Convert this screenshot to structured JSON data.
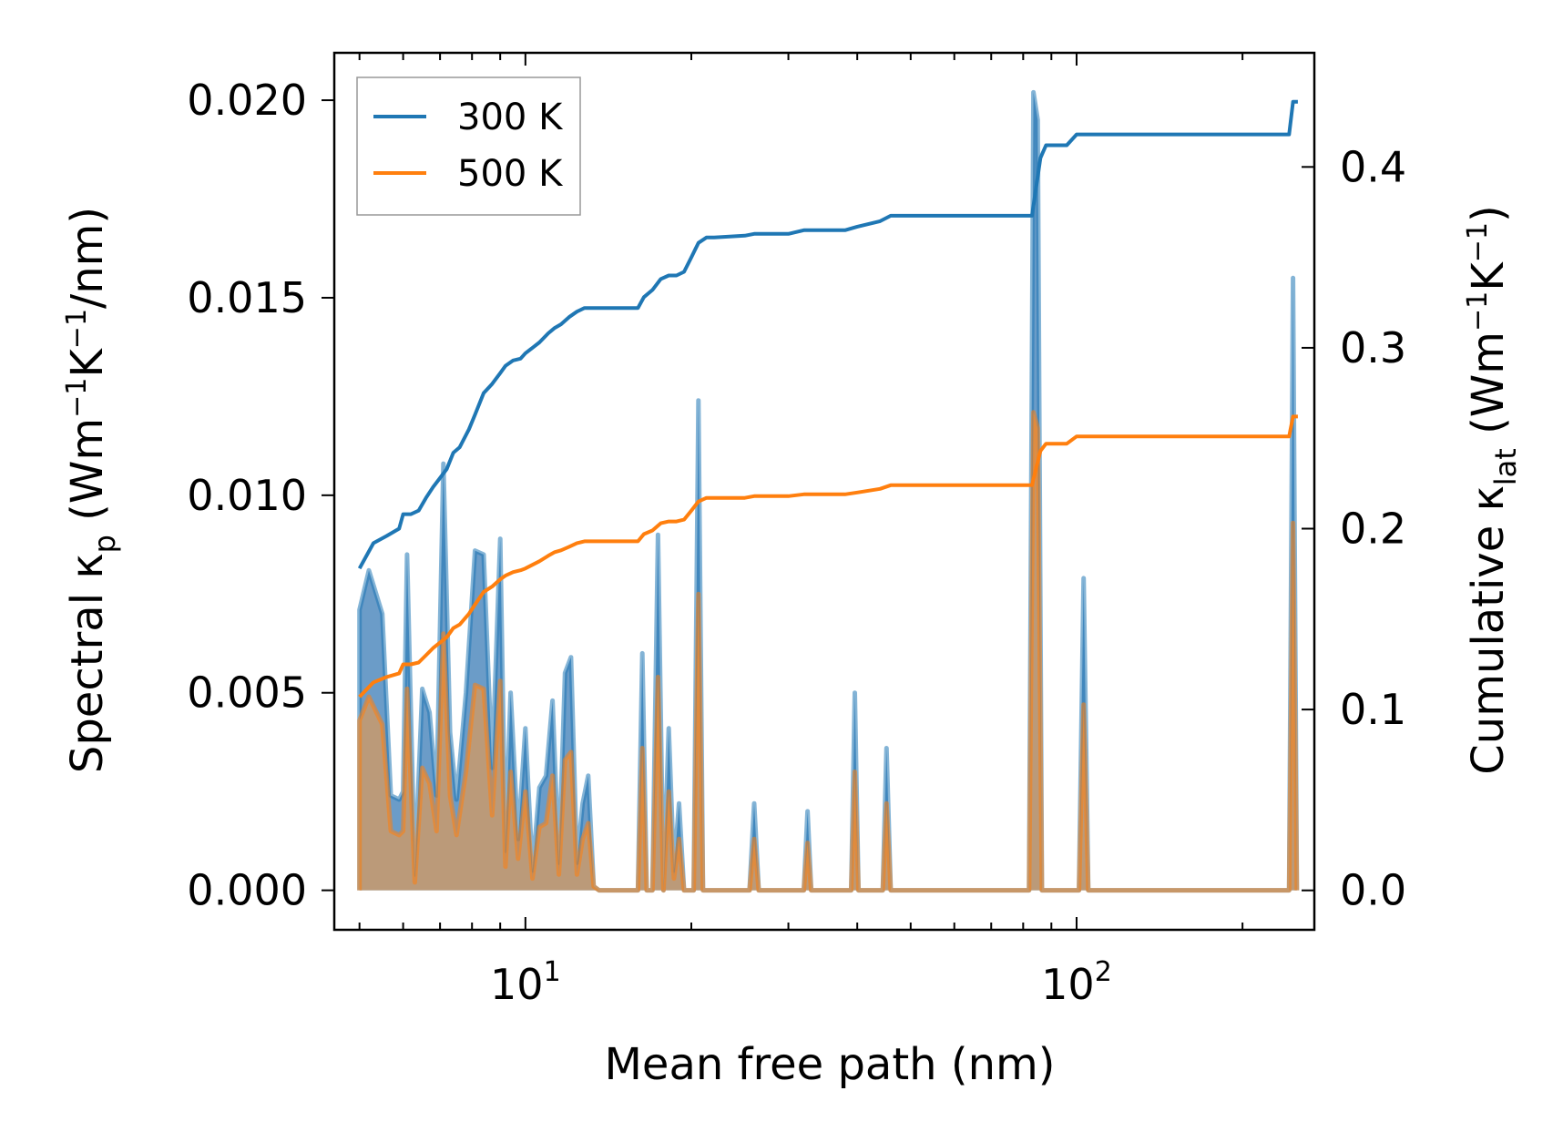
{
  "chart_data": {
    "type": "line",
    "x_scale": "log",
    "xlabel": "Mean free path (nm)",
    "ylabel_left": {
      "prefix": "Spectral κ",
      "sub": "p",
      "unit_open": " (Wm",
      "sup1": "−1",
      "k": "K",
      "sup2": "−1",
      "unit_close": "/nm)"
    },
    "ylabel_right": {
      "prefix": "Cumulative κ",
      "sub": "lat",
      "unit_open": " (Wm",
      "sup1": "−1",
      "k": "K",
      "sup2": "−1",
      "unit_close": ")"
    },
    "xlim": [
      4.5,
      270
    ],
    "ylim_left": [
      -0.001,
      0.0212
    ],
    "ylim_right": [
      -0.0218,
      0.4631
    ],
    "x_ticks": [
      {
        "value": 10,
        "base": "10",
        "exp": "1"
      },
      {
        "value": 100,
        "base": "10",
        "exp": "2"
      }
    ],
    "y_left_ticks": [
      {
        "value": 0.0,
        "label": "0.000"
      },
      {
        "value": 0.005,
        "label": "0.005"
      },
      {
        "value": 0.01,
        "label": "0.010"
      },
      {
        "value": 0.015,
        "label": "0.015"
      },
      {
        "value": 0.02,
        "label": "0.020"
      }
    ],
    "y_right_ticks": [
      {
        "value": 0.0,
        "label": "0.0"
      },
      {
        "value": 0.1,
        "label": "0.1"
      },
      {
        "value": 0.2,
        "label": "0.2"
      },
      {
        "value": 0.3,
        "label": "0.3"
      },
      {
        "value": 0.4,
        "label": "0.4"
      }
    ],
    "legend": {
      "position": "upper-left",
      "entries": [
        "300 K",
        "500 K"
      ]
    },
    "colors": {
      "300 K": "#1f77b4",
      "500 K": "#ff7f0e",
      "fill_300": "#5b91c2",
      "fill_500": "#c99a6b"
    },
    "series": [
      {
        "name": "300 K",
        "spectral": {
          "x": [
            5.0,
            5.0,
            5.2,
            5.5,
            5.7,
            5.9,
            6.0,
            6.1,
            6.3,
            6.5,
            6.7,
            6.9,
            7.1,
            7.3,
            7.5,
            7.8,
            8.1,
            8.4,
            8.7,
            9.0,
            9.2,
            9.4,
            9.7,
            10.0,
            10.3,
            10.6,
            10.9,
            11.2,
            11.5,
            11.8,
            12.1,
            12.4,
            12.7,
            13.0,
            13.3,
            13.6,
            13.9,
            14.2,
            16.0,
            16.3,
            16.6,
            17.0,
            17.4,
            17.8,
            18.2,
            18.6,
            19.0,
            19.4,
            19.8,
            20.2,
            20.6,
            21.0,
            21.4,
            21.8,
            25.5,
            26.0,
            26.5,
            32.0,
            32.5,
            33.0,
            39.0,
            39.6,
            40.2,
            44.5,
            45.2,
            46.0,
            82.0,
            83.5,
            85.0,
            86.5,
            88.0,
            89.5,
            101.0,
            103.0,
            105.0,
            243.0,
            247.0,
            251.0
          ],
          "y": [
            0.0,
            0.0071,
            0.0081,
            0.007,
            0.0024,
            0.0023,
            0.0025,
            0.0085,
            0.0004,
            0.0051,
            0.0045,
            0.0024,
            0.0108,
            0.004,
            0.0023,
            0.005,
            0.0086,
            0.0085,
            0.0031,
            0.0089,
            0.001,
            0.005,
            0.0013,
            0.0041,
            0.0005,
            0.0026,
            0.0029,
            0.0048,
            0.0007,
            0.0055,
            0.0059,
            0.0007,
            0.0022,
            0.0029,
            0.0001,
            0.0,
            0.0,
            0.0,
            0.0,
            0.006,
            0.0,
            0.0,
            0.009,
            0.0,
            0.0041,
            0.0005,
            0.0022,
            0.0,
            0.0,
            0.0,
            0.0124,
            0.0,
            0.0,
            0.0,
            0.0,
            0.0022,
            0.0,
            0.0,
            0.002,
            0.0,
            0.0,
            0.005,
            0.0,
            0.0,
            0.0036,
            0.0,
            0.0,
            0.0202,
            0.0195,
            0.0,
            0.0,
            0.0,
            0.0,
            0.0079,
            0.0,
            0.0,
            0.0155,
            0.0
          ]
        },
        "cumulative": {
          "x": [
            5.0,
            5.3,
            5.6,
            5.9,
            6.0,
            6.2,
            6.4,
            6.6,
            6.8,
            7.0,
            7.2,
            7.4,
            7.6,
            7.9,
            8.1,
            8.4,
            8.7,
            9.0,
            9.2,
            9.5,
            9.8,
            10.0,
            10.3,
            10.6,
            11.0,
            11.3,
            11.6,
            12.0,
            12.4,
            12.8,
            13.2,
            13.6,
            16.0,
            16.4,
            17.0,
            17.6,
            18.2,
            18.8,
            19.4,
            20.0,
            20.6,
            21.3,
            22.0,
            25.0,
            26.0,
            30.0,
            32.0,
            38.0,
            40.0,
            44.0,
            46.0,
            80.0,
            83.0,
            86.0,
            88.0,
            96.0,
            100.0,
            243.0,
            247.0,
            252.0
          ],
          "y": [
            0.178,
            0.192,
            0.196,
            0.2,
            0.208,
            0.208,
            0.21,
            0.217,
            0.223,
            0.228,
            0.233,
            0.242,
            0.245,
            0.255,
            0.263,
            0.275,
            0.28,
            0.286,
            0.29,
            0.293,
            0.294,
            0.297,
            0.3,
            0.303,
            0.308,
            0.311,
            0.313,
            0.317,
            0.32,
            0.322,
            0.322,
            0.322,
            0.322,
            0.328,
            0.332,
            0.338,
            0.34,
            0.34,
            0.342,
            0.35,
            0.358,
            0.361,
            0.361,
            0.362,
            0.363,
            0.363,
            0.365,
            0.365,
            0.367,
            0.37,
            0.373,
            0.373,
            0.373,
            0.405,
            0.412,
            0.412,
            0.418,
            0.418,
            0.436,
            0.436
          ]
        }
      },
      {
        "name": "500 K",
        "spectral": {
          "x": [
            5.0,
            5.0,
            5.2,
            5.5,
            5.7,
            5.9,
            6.0,
            6.1,
            6.3,
            6.5,
            6.7,
            6.9,
            7.1,
            7.3,
            7.5,
            7.8,
            8.1,
            8.4,
            8.7,
            9.0,
            9.2,
            9.4,
            9.7,
            10.0,
            10.3,
            10.6,
            10.9,
            11.2,
            11.5,
            11.8,
            12.1,
            12.4,
            12.7,
            13.0,
            13.3,
            13.6,
            13.9,
            14.2,
            16.0,
            16.3,
            16.6,
            17.0,
            17.4,
            17.8,
            18.2,
            18.6,
            19.0,
            19.4,
            19.8,
            20.2,
            20.6,
            21.0,
            21.4,
            21.8,
            25.5,
            26.0,
            26.5,
            32.0,
            32.5,
            33.0,
            39.0,
            39.6,
            40.2,
            44.5,
            45.2,
            46.0,
            82.0,
            83.5,
            85.0,
            86.5,
            88.0,
            89.5,
            101.0,
            103.0,
            105.0,
            243.0,
            247.0,
            251.0
          ],
          "y": [
            0.0,
            0.0043,
            0.0049,
            0.0042,
            0.0015,
            0.0014,
            0.0015,
            0.0051,
            0.0002,
            0.0031,
            0.0027,
            0.0015,
            0.0065,
            0.0024,
            0.0014,
            0.003,
            0.0052,
            0.0051,
            0.0019,
            0.0053,
            0.0006,
            0.003,
            0.0008,
            0.0025,
            0.0003,
            0.0016,
            0.0017,
            0.0029,
            0.0004,
            0.0033,
            0.0035,
            0.0004,
            0.0013,
            0.0017,
            0.0001,
            0.0,
            0.0,
            0.0,
            0.0,
            0.0036,
            0.0,
            0.0,
            0.0054,
            0.0,
            0.0025,
            0.0003,
            0.0013,
            0.0,
            0.0,
            0.0,
            0.0075,
            0.0,
            0.0,
            0.0,
            0.0,
            0.0013,
            0.0,
            0.0,
            0.0012,
            0.0,
            0.0,
            0.003,
            0.0,
            0.0,
            0.0022,
            0.0,
            0.0,
            0.0121,
            0.0117,
            0.0,
            0.0,
            0.0,
            0.0,
            0.0047,
            0.0,
            0.0,
            0.0093,
            0.0
          ]
        },
        "cumulative": {
          "x": [
            5.0,
            5.3,
            5.6,
            5.9,
            6.0,
            6.2,
            6.4,
            6.6,
            6.8,
            7.0,
            7.2,
            7.4,
            7.6,
            7.9,
            8.1,
            8.4,
            8.7,
            9.0,
            9.2,
            9.5,
            9.8,
            10.0,
            10.3,
            10.6,
            11.0,
            11.3,
            11.6,
            12.0,
            12.4,
            12.8,
            13.2,
            13.6,
            16.0,
            16.4,
            17.0,
            17.6,
            18.2,
            18.8,
            19.4,
            20.0,
            20.6,
            21.3,
            22.0,
            25.0,
            26.0,
            30.0,
            32.0,
            38.0,
            40.0,
            44.0,
            46.0,
            80.0,
            83.0,
            86.0,
            88.0,
            96.0,
            100.0,
            243.0,
            247.0,
            252.0
          ],
          "y": [
            0.107,
            0.115,
            0.118,
            0.12,
            0.125,
            0.125,
            0.126,
            0.13,
            0.134,
            0.137,
            0.14,
            0.145,
            0.147,
            0.153,
            0.158,
            0.165,
            0.168,
            0.172,
            0.174,
            0.176,
            0.177,
            0.178,
            0.18,
            0.182,
            0.185,
            0.187,
            0.188,
            0.19,
            0.192,
            0.193,
            0.193,
            0.193,
            0.193,
            0.197,
            0.199,
            0.203,
            0.204,
            0.204,
            0.205,
            0.21,
            0.215,
            0.217,
            0.217,
            0.217,
            0.218,
            0.218,
            0.219,
            0.219,
            0.22,
            0.222,
            0.224,
            0.224,
            0.224,
            0.243,
            0.247,
            0.247,
            0.251,
            0.251,
            0.262,
            0.262
          ]
        }
      }
    ]
  }
}
